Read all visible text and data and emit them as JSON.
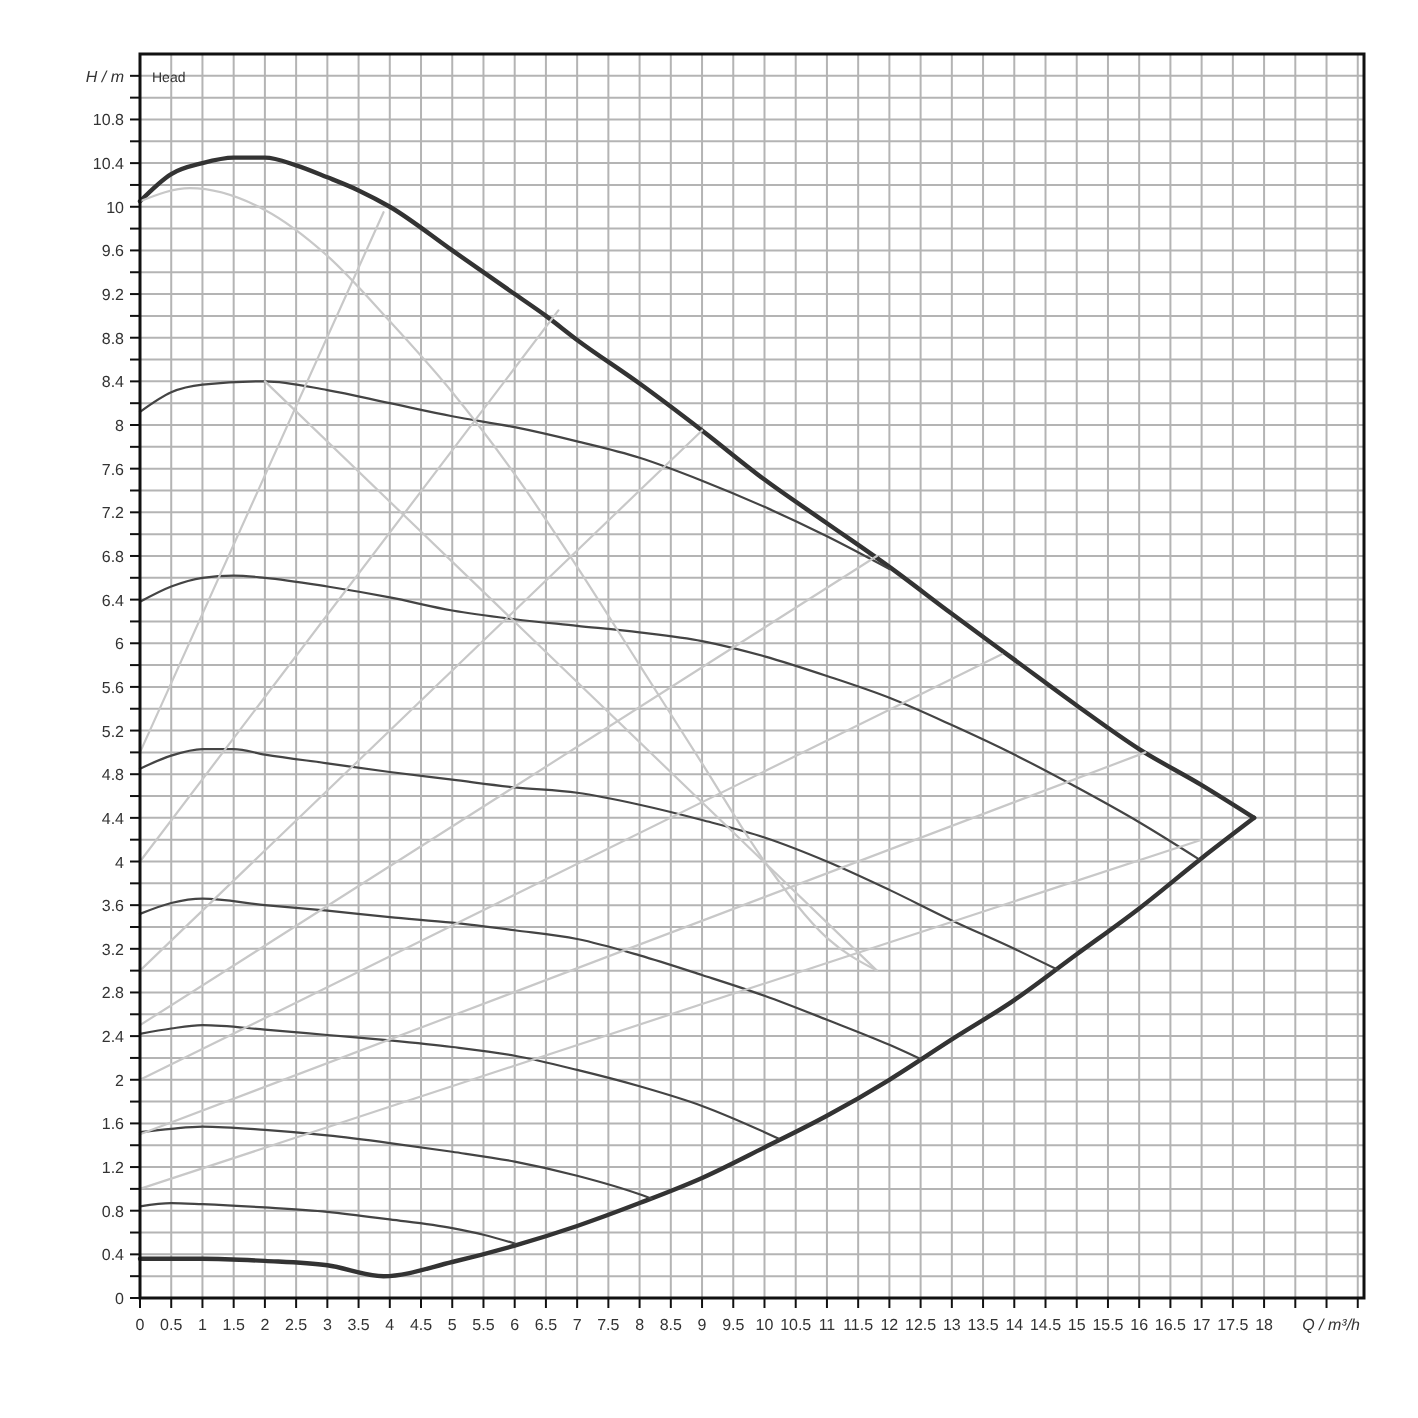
{
  "chart_data": {
    "type": "line",
    "xlabel": "Q / m³/h",
    "ylabel": "H / m",
    "annotations": [
      "Head"
    ],
    "xlim": [
      0,
      19.6
    ],
    "ylim": [
      0,
      11.4
    ],
    "grid": true,
    "marker": "none",
    "line_style": "solid",
    "xticks": [
      0,
      0.5,
      1,
      1.5,
      2,
      2.5,
      3,
      3.5,
      4,
      4.5,
      5,
      5.5,
      6,
      6.5,
      7,
      7.5,
      8,
      8.5,
      9,
      9.5,
      10,
      10.5,
      11,
      11.5,
      12,
      12.5,
      13,
      13.5,
      14,
      14.5,
      15,
      15.5,
      16,
      16.5,
      17,
      17.5,
      18,
      {
        "value": 18.5,
        "label": null
      },
      {
        "value": 19,
        "label": null
      },
      {
        "value": 19.5,
        "label": null
      }
    ],
    "yticks": [
      0,
      {
        "value": 0.2,
        "label": null
      },
      0.4,
      {
        "value": 0.6,
        "label": null
      },
      0.8,
      {
        "value": 1,
        "label": null
      },
      1.2,
      {
        "value": 1.4,
        "label": null
      },
      1.6,
      {
        "value": 1.8,
        "label": null
      },
      2,
      {
        "value": 2.2,
        "label": null
      },
      2.4,
      {
        "value": 2.6,
        "label": null
      },
      2.8,
      {
        "value": 3,
        "label": null
      },
      3.2,
      {
        "value": 3.4,
        "label": null
      },
      3.6,
      {
        "value": 3.8,
        "label": null
      },
      4,
      {
        "value": 4.2,
        "label": null
      },
      4.4,
      {
        "value": 4.6,
        "label": null
      },
      4.8,
      {
        "value": 5,
        "label": null
      },
      5.2,
      {
        "value": 5.4,
        "label": null
      },
      5.6,
      {
        "value": 5.8,
        "label": null
      },
      6,
      {
        "value": 6.2,
        "label": null
      },
      6.4,
      {
        "value": 6.6,
        "label": null
      },
      6.8,
      {
        "value": 7,
        "label": null
      },
      7.2,
      {
        "value": 7.4,
        "label": null
      },
      7.6,
      {
        "value": 7.8,
        "label": null
      },
      8,
      {
        "value": 8.2,
        "label": null
      },
      8.4,
      {
        "value": 8.6,
        "label": null
      },
      8.8,
      {
        "value": 9,
        "label": null
      },
      9.2,
      {
        "value": 9.4,
        "label": null
      },
      9.6,
      {
        "value": 9.8,
        "label": null
      },
      10,
      {
        "value": 10.2,
        "label": null
      },
      10.4,
      {
        "value": 10.6,
        "label": null
      },
      10.8,
      {
        "value": 11,
        "label": null
      },
      {
        "value": 11.2,
        "label": null
      }
    ],
    "series": [
      {
        "color": "#333333",
        "x": [
          0,
          0.5,
          1,
          1.5,
          2,
          2.5,
          3,
          3.5,
          4,
          5,
          6,
          6.5,
          7,
          8,
          9,
          10,
          11,
          12,
          13,
          14,
          15,
          16,
          17,
          17.84
        ],
        "values": [
          10.05,
          10.3,
          10.4,
          10.45,
          10.45,
          10.38,
          10.27,
          10.15,
          10,
          9.6,
          9.2,
          9,
          8.78,
          8.38,
          7.95,
          7.5,
          7.1,
          6.7,
          6.27,
          5.85,
          5.43,
          5.03,
          4.7,
          4.4
        ]
      },
      {
        "color": "#333333",
        "x": [
          0,
          1,
          2,
          3,
          3.9,
          5,
          6,
          7,
          8,
          9,
          10,
          11,
          12,
          13,
          14,
          15,
          16,
          17,
          17.84
        ],
        "values": [
          0.36,
          0.36,
          0.34,
          0.3,
          0.2,
          0.33,
          0.48,
          0.66,
          0.87,
          1.1,
          1.38,
          1.67,
          2,
          2.37,
          2.73,
          3.15,
          3.57,
          4.03,
          4.4
        ]
      },
      {
        "color": "#444444",
        "x": [
          0,
          0.5,
          1,
          2,
          3,
          4,
          5,
          6,
          7,
          8,
          9,
          10,
          11,
          12
        ],
        "values": [
          8.12,
          8.3,
          8.37,
          8.4,
          8.32,
          8.2,
          8.08,
          7.98,
          7.85,
          7.7,
          7.49,
          7.25,
          6.98,
          6.68
        ]
      },
      {
        "color": "#444444",
        "x": [
          0,
          0.5,
          1,
          1.5,
          2,
          3,
          4,
          5,
          6,
          7,
          8,
          9,
          10,
          11,
          12,
          13,
          14,
          15,
          16,
          16.96
        ],
        "values": [
          6.38,
          6.52,
          6.6,
          6.62,
          6.6,
          6.52,
          6.42,
          6.3,
          6.22,
          6.16,
          6.1,
          6.02,
          5.88,
          5.7,
          5.5,
          5.25,
          4.98,
          4.68,
          4.36,
          4.02
        ]
      },
      {
        "color": "#444444",
        "x": [
          0,
          0.5,
          1,
          1.5,
          2,
          3,
          4,
          5,
          6,
          7,
          8,
          9,
          10,
          11,
          12,
          13,
          14,
          14.69
        ],
        "values": [
          4.85,
          4.97,
          5.03,
          5.03,
          4.98,
          4.9,
          4.82,
          4.75,
          4.68,
          4.63,
          4.52,
          4.38,
          4.22,
          4,
          3.74,
          3.46,
          3.2,
          3.01
        ]
      },
      {
        "color": "#444444",
        "x": [
          0,
          0.5,
          1,
          2,
          3,
          4,
          5,
          6,
          7,
          8,
          9,
          10,
          11,
          12,
          12.5
        ],
        "values": [
          3.52,
          3.62,
          3.66,
          3.6,
          3.55,
          3.49,
          3.44,
          3.37,
          3.29,
          3.14,
          2.96,
          2.77,
          2.55,
          2.32,
          2.19
        ]
      },
      {
        "color": "#444444",
        "x": [
          0,
          0.5,
          1,
          2,
          3,
          4,
          5,
          6,
          7,
          8,
          9,
          10,
          10.23
        ],
        "values": [
          2.42,
          2.47,
          2.5,
          2.46,
          2.41,
          2.36,
          2.3,
          2.22,
          2.09,
          1.94,
          1.76,
          1.52,
          1.46
        ]
      },
      {
        "color": "#444444",
        "x": [
          0,
          0.5,
          1,
          2,
          3,
          4,
          5,
          6,
          7,
          8,
          8.19
        ],
        "values": [
          1.52,
          1.55,
          1.57,
          1.54,
          1.49,
          1.42,
          1.34,
          1.25,
          1.12,
          0.95,
          0.91
        ]
      },
      {
        "color": "#444444",
        "x": [
          0,
          0.5,
          1,
          2,
          3,
          4,
          5,
          5.5,
          6
        ],
        "values": [
          0.84,
          0.87,
          0.86,
          0.83,
          0.79,
          0.72,
          0.64,
          0.58,
          0.5
        ]
      },
      {
        "color": "#c8c8c8",
        "x": [
          0,
          0.8,
          2,
          3,
          4,
          5,
          6,
          7,
          8,
          9,
          10,
          11,
          11.8
        ],
        "values": [
          10.05,
          10.17,
          9.97,
          9.55,
          8.95,
          8.3,
          7.55,
          6.7,
          5.8,
          4.9,
          4,
          3.3,
          3
        ]
      },
      {
        "color": "#c8c8c8",
        "x": [
          0,
          3.9
        ],
        "values": [
          5,
          9.95
        ]
      },
      {
        "color": "#c8c8c8",
        "x": [
          0,
          6.7
        ],
        "values": [
          4,
          9.05
        ]
      },
      {
        "color": "#c8c8c8",
        "x": [
          0,
          9
        ],
        "values": [
          3,
          7.95
        ]
      },
      {
        "color": "#c8c8c8",
        "x": [
          0,
          11.8
        ],
        "values": [
          2.5,
          6.8
        ]
      },
      {
        "color": "#c8c8c8",
        "x": [
          0,
          13.8
        ],
        "values": [
          2,
          5.9
        ]
      },
      {
        "color": "#c8c8c8",
        "x": [
          0,
          16.1
        ],
        "values": [
          1.5,
          5
        ]
      },
      {
        "color": "#c8c8c8",
        "x": [
          0,
          17
        ],
        "values": [
          1,
          4.2
        ]
      },
      {
        "color": "#c8c8c8",
        "x": [
          2,
          11.8
        ],
        "values": [
          8.4,
          3
        ]
      }
    ]
  }
}
